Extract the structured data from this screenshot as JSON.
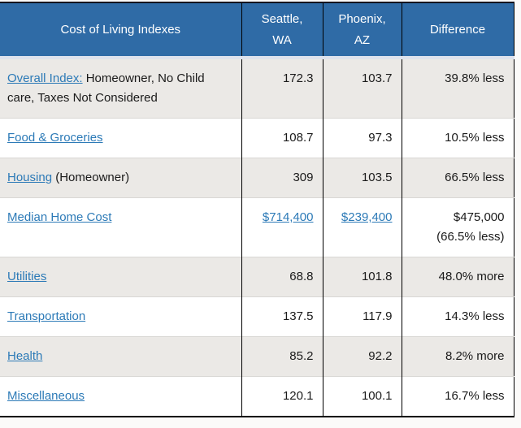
{
  "table": {
    "header": {
      "category": "Cost of Living Indexes",
      "city1": "Seattle, WA",
      "city2": "Phoenix, AZ",
      "difference": "Difference"
    },
    "rows": [
      {
        "link": "Overall Index:",
        "rest": " Homeowner, No Child care, Taxes Not Considered",
        "seattle": "172.3",
        "phoenix": "103.7",
        "difference": "39.8% less"
      },
      {
        "link": "Food & Groceries",
        "rest": "",
        "seattle": "108.7",
        "phoenix": "97.3",
        "difference": "10.5% less"
      },
      {
        "link": "Housing",
        "rest": " (Homeowner)",
        "seattle": "309",
        "phoenix": "103.5",
        "difference": "66.5% less"
      },
      {
        "link": "Median Home Cost",
        "rest": "",
        "seattle": "$714,400",
        "phoenix": "$239,400",
        "difference_line1": "$475,000",
        "difference_line2": "(66.5% less)"
      },
      {
        "link": "Utilities",
        "rest": "",
        "seattle": "68.8",
        "phoenix": "101.8",
        "difference": "48.0% more"
      },
      {
        "link": "Transportation",
        "rest": "",
        "seattle": "137.5",
        "phoenix": "117.9",
        "difference": "14.3% less"
      },
      {
        "link": "Health",
        "rest": "",
        "seattle": "85.2",
        "phoenix": "92.2",
        "difference": "8.2% more"
      },
      {
        "link": "Miscellaneous",
        "rest": "",
        "seattle": "120.1",
        "phoenix": "100.1",
        "difference": "16.7% less"
      }
    ],
    "colors": {
      "header_bg": "#2f6ba6",
      "header_text": "#ffffff",
      "shaded_row_bg": "#ebe9e6",
      "link": "#2c7ab7",
      "column_border": "#000000",
      "row_separator": "#d9d7d4"
    }
  }
}
